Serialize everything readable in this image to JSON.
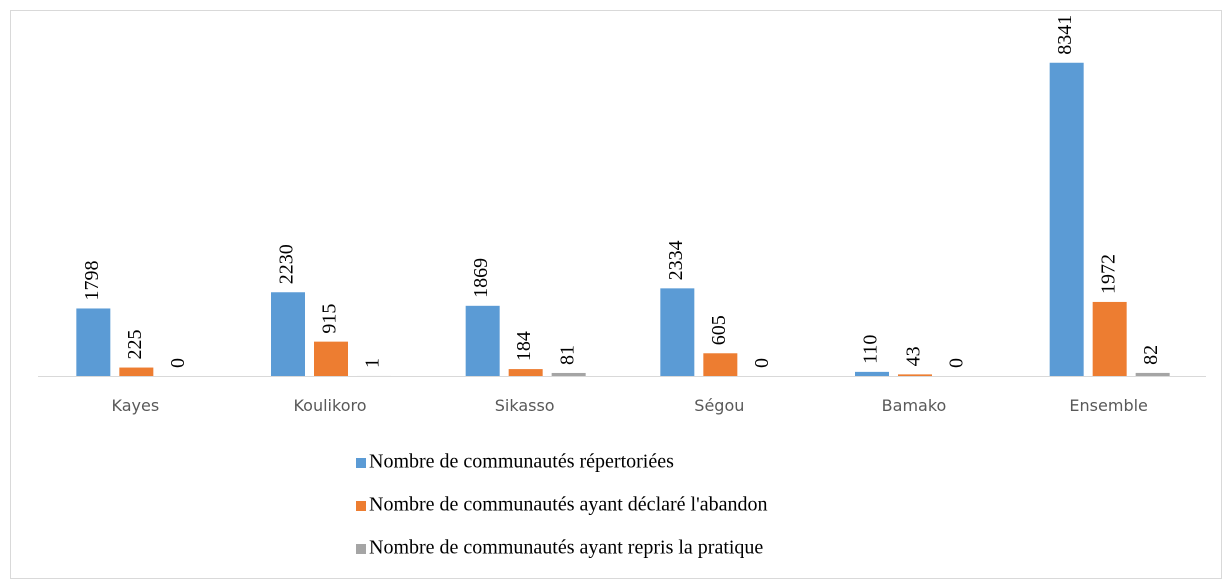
{
  "chart_data": {
    "type": "bar",
    "categories": [
      "Kayes",
      "Koulikoro",
      "Sikasso",
      "Ségou",
      "Bamako",
      "Ensemble"
    ],
    "series": [
      {
        "name": "Nombre de communautés répertoriées",
        "color": "#5b9bd5",
        "values": [
          1798,
          2230,
          1869,
          2334,
          110,
          8341
        ]
      },
      {
        "name": "Nombre de communautés ayant déclaré l'abandon",
        "color": "#ed7d31",
        "values": [
          225,
          915,
          184,
          605,
          43,
          1972
        ]
      },
      {
        "name": "Nombre de communautés ayant repris la pratique",
        "color": "#a5a5a5",
        "values": [
          0,
          1,
          81,
          0,
          0,
          82
        ]
      }
    ],
    "ylim": [
      0,
      9000
    ],
    "legend": "bottom"
  }
}
